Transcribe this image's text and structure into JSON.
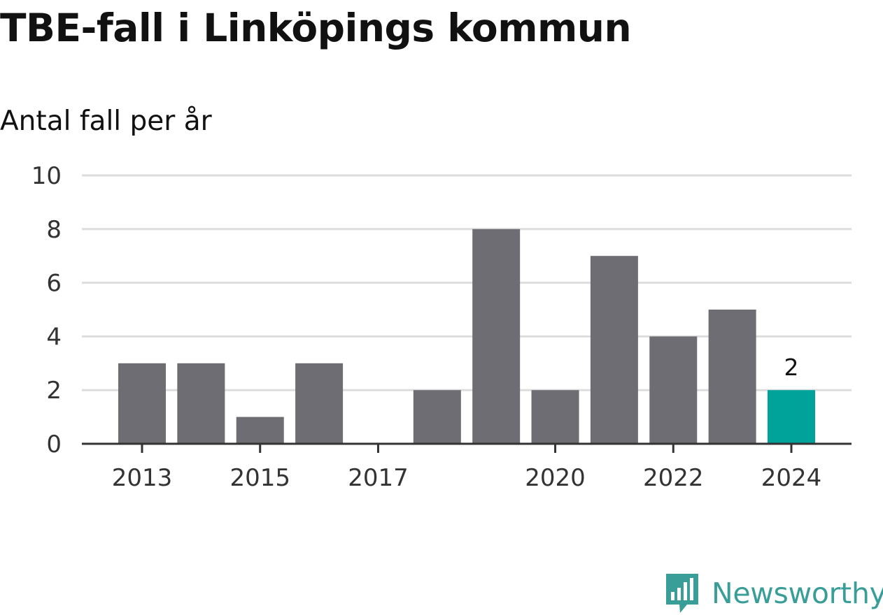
{
  "header": {
    "title": "TBE-fall i Linköpings kommun",
    "subtitle": "Antal fall per år"
  },
  "brand": {
    "name": "Newsworthy",
    "icon": "newsworthy-logo-icon",
    "color": "#3a9e98"
  },
  "chart_data": {
    "type": "bar",
    "title": "TBE-fall i Linköpings kommun",
    "subtitle": "Antal fall per år",
    "xlabel": "",
    "ylabel": "",
    "categories": [
      "2013",
      "2014",
      "2015",
      "2016",
      "2017",
      "2018",
      "2019",
      "2020",
      "2021",
      "2022",
      "2023",
      "2024"
    ],
    "values": [
      3,
      3,
      1,
      3,
      0,
      2,
      8,
      2,
      7,
      4,
      5,
      2
    ],
    "x_tick_labels": [
      "2013",
      "2015",
      "2017",
      "2020",
      "2022",
      "2024"
    ],
    "y_ticks": [
      0,
      2,
      4,
      6,
      8,
      10
    ],
    "ylim": [
      0,
      10
    ],
    "grid": true,
    "legend": "none",
    "bar_color": "#6e6d73",
    "highlight": {
      "category": "2024",
      "color": "#00a39a",
      "label": "2"
    },
    "grid_color": "#dddddd",
    "axis_color": "#333333"
  }
}
